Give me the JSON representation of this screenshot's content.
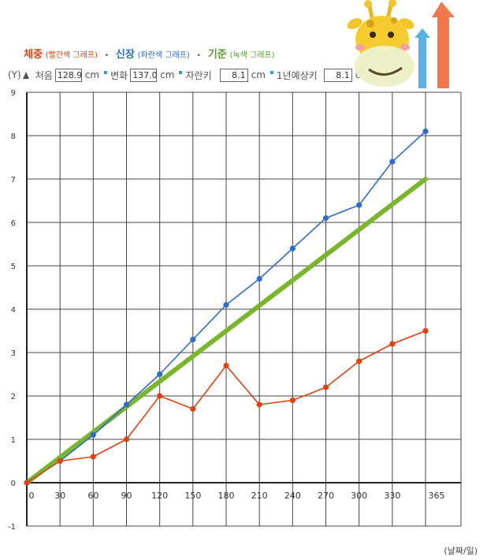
{
  "legend": {
    "items": [
      {
        "label": "체중",
        "sub": "(빨간색 그래프)",
        "color": "#e2420e"
      },
      {
        "label": "신장",
        "sub": "(파란색 그래프)",
        "color": "#2e6bd1"
      },
      {
        "label": "기준",
        "sub": "(녹색 그래프)",
        "color": "#5aa02c"
      }
    ],
    "separator": "•"
  },
  "toolbar": {
    "y_axis_label": "(Y)",
    "start_label": "처음",
    "start_value": "128.9",
    "start_unit": "cm",
    "change_label": "변화",
    "change_value": "137.0",
    "change_unit": "cm",
    "grown_label": "자란키",
    "grown_value": "8.1",
    "grown_unit": "cm",
    "expected_label": "1년예상키",
    "expected_value": "8.1",
    "expected_unit": "cm"
  },
  "x_unit_label": "(날짜/일)",
  "chart_data": {
    "type": "line",
    "x_ticks": [
      "0",
      "30",
      "60",
      "90",
      "120",
      "150",
      "180",
      "210",
      "240",
      "270",
      "300",
      "330",
      "365"
    ],
    "y_ticks": [
      "-1",
      "0",
      "1",
      "2",
      "3",
      "4",
      "5",
      "6",
      "7",
      "8",
      "9"
    ],
    "xlim": [
      0,
      365
    ],
    "ylim": [
      -1,
      9
    ],
    "grid": true,
    "series": [
      {
        "name": "신장",
        "color": "#2e6bd1",
        "x": [
          0,
          30,
          60,
          90,
          120,
          150,
          180,
          210,
          240,
          270,
          300,
          330,
          360
        ],
        "y": [
          0,
          0.5,
          1.1,
          1.8,
          2.5,
          3.3,
          4.1,
          4.7,
          5.4,
          6.1,
          6.4,
          7.4,
          8.1
        ]
      },
      {
        "name": "체중",
        "color": "#e2420e",
        "x": [
          0,
          30,
          60,
          90,
          120,
          150,
          180,
          210,
          240,
          270,
          300,
          330,
          360
        ],
        "y": [
          0,
          0.5,
          0.6,
          1.0,
          2.0,
          1.7,
          2.7,
          1.8,
          1.9,
          2.2,
          2.8,
          3.2,
          3.5
        ]
      },
      {
        "name": "기준",
        "color": "#7ab62b",
        "x": [
          0,
          360
        ],
        "y": [
          0,
          7.0
        ]
      }
    ]
  }
}
